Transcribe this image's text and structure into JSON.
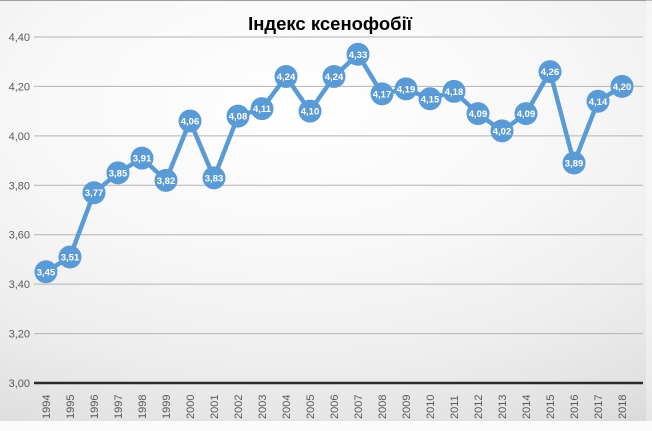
{
  "chart_data": {
    "type": "line",
    "title": "Індекс ксенофобії",
    "x_labels": [
      "1994",
      "1995",
      "1996",
      "1997",
      "1998",
      "1999",
      "2000",
      "2001",
      "2002",
      "2003",
      "2004",
      "2005",
      "2006",
      "2007",
      "2008",
      "2009",
      "2010",
      "2011",
      "2012",
      "2013",
      "2014",
      "2015",
      "2016",
      "2017",
      "2018"
    ],
    "values": [
      3.45,
      3.51,
      3.77,
      3.85,
      3.91,
      3.82,
      4.06,
      3.83,
      4.08,
      4.11,
      4.24,
      4.1,
      4.24,
      4.33,
      4.17,
      4.19,
      4.15,
      4.18,
      4.09,
      4.02,
      4.09,
      4.26,
      3.89,
      4.14,
      4.2
    ],
    "point_labels": [
      "3,45",
      "3,51",
      "3,77",
      "3,85",
      "3,91",
      "3,82",
      "4,06",
      "3,83",
      "4,08",
      "4,11",
      "4,24",
      "4,10",
      "4,24",
      "4,33",
      "4,17",
      "4,19",
      "4,15",
      "4,18",
      "4,09",
      "4,02",
      "4,09",
      "4,26",
      "3,89",
      "4,14",
      "4,20"
    ],
    "y_ticks": [
      3.0,
      3.2,
      3.4,
      3.6,
      3.8,
      4.0,
      4.2,
      4.4
    ],
    "y_tick_labels": [
      "3,00",
      "3,20",
      "3,40",
      "3,60",
      "3,80",
      "4,00",
      "4,20",
      "4,40"
    ],
    "ylim": [
      3.0,
      4.4
    ],
    "grid": true,
    "legend_position": "none",
    "decimal_separator": ",",
    "colors": {
      "series": "#5b9bd5",
      "point_label_text": "#ffffff",
      "axis_text": "#595959",
      "title_text": "#3f3f3f",
      "gridline": "#b3b3b3",
      "axis_line": "#2b2b2b"
    }
  }
}
